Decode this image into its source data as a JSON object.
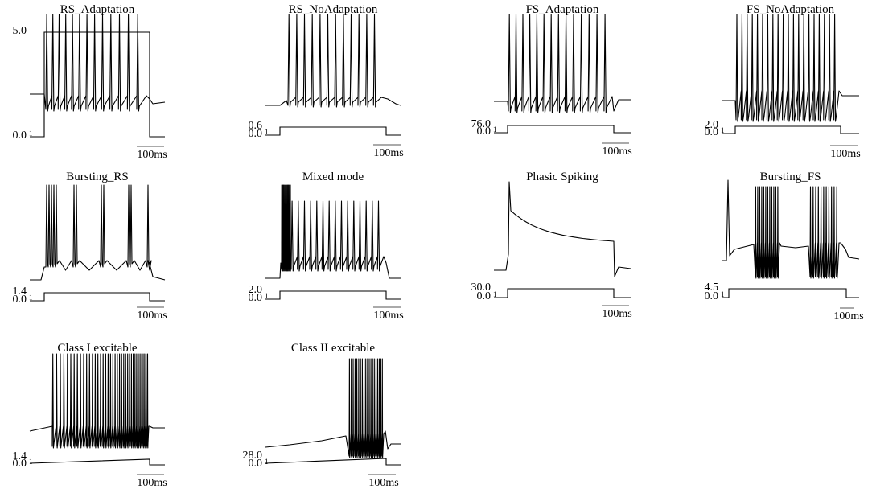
{
  "chart_data": [
    {
      "type": "line",
      "title": "RS_Adaptation",
      "pattern": "rs_adapt",
      "spikes": 13,
      "stimulus": {
        "shape": "step",
        "amplitude_labels": [
          "5.0",
          "0.0"
        ],
        "mark": "1"
      },
      "scale_bar": "100ms"
    },
    {
      "type": "line",
      "title": "RS_NoAdaptation",
      "pattern": "rs_noadapt",
      "spikes": 12,
      "stimulus": {
        "shape": "step",
        "amplitude_labels": [
          "0.6",
          "0.0"
        ],
        "mark": "1"
      },
      "scale_bar": "100ms"
    },
    {
      "type": "line",
      "title": "FS_Adaptation",
      "pattern": "fs_adapt",
      "spikes": 14,
      "stimulus": {
        "shape": "step",
        "amplitude_labels": [
          "76.0",
          "0.0"
        ],
        "mark": "1"
      },
      "scale_bar": "100ms"
    },
    {
      "type": "line",
      "title": "FS_NoAdaptation",
      "pattern": "fs_noadapt",
      "spikes": 20,
      "stimulus": {
        "shape": "step",
        "amplitude_labels": [
          "2.0",
          "0.0"
        ],
        "mark": "1"
      },
      "scale_bar": "100ms"
    },
    {
      "type": "line",
      "title": "Bursting_RS",
      "pattern": "bursting_rs",
      "spikes": 12,
      "stimulus": {
        "shape": "step",
        "amplitude_labels": [
          "1.4",
          "0.0"
        ],
        "mark": "1"
      },
      "scale_bar": "100ms"
    },
    {
      "type": "line",
      "title": "Mixed mode",
      "pattern": "mixed",
      "spikes": 25,
      "stimulus": {
        "shape": "step",
        "amplitude_labels": [
          "2.0",
          "0.0"
        ],
        "mark": "1"
      },
      "scale_bar": "100ms"
    },
    {
      "type": "line",
      "title": "Phasic Spiking",
      "pattern": "phasic",
      "spikes": 1,
      "stimulus": {
        "shape": "step",
        "amplitude_labels": [
          "30.0",
          "0.0"
        ],
        "mark": "1"
      },
      "scale_bar": "100ms"
    },
    {
      "type": "line",
      "title": "Bursting_FS",
      "pattern": "bursting_fs",
      "spikes": 23,
      "stimulus": {
        "shape": "step",
        "amplitude_labels": [
          "4.5",
          "0.0"
        ],
        "mark": "1"
      },
      "scale_bar": "100ms"
    },
    {
      "type": "line",
      "title": "Class I excitable",
      "pattern": "class1",
      "spikes": 40,
      "stimulus": {
        "shape": "ramp",
        "amplitude_labels": [
          "1.4",
          "0.0"
        ],
        "mark": "1"
      },
      "scale_bar": "100ms"
    },
    {
      "type": "line",
      "title": "Class II excitable",
      "pattern": "class2",
      "spikes": 20,
      "stimulus": {
        "shape": "ramp",
        "amplitude_labels": [
          "28.0",
          "0.0"
        ],
        "mark": "1"
      },
      "scale_bar": "100ms"
    }
  ]
}
